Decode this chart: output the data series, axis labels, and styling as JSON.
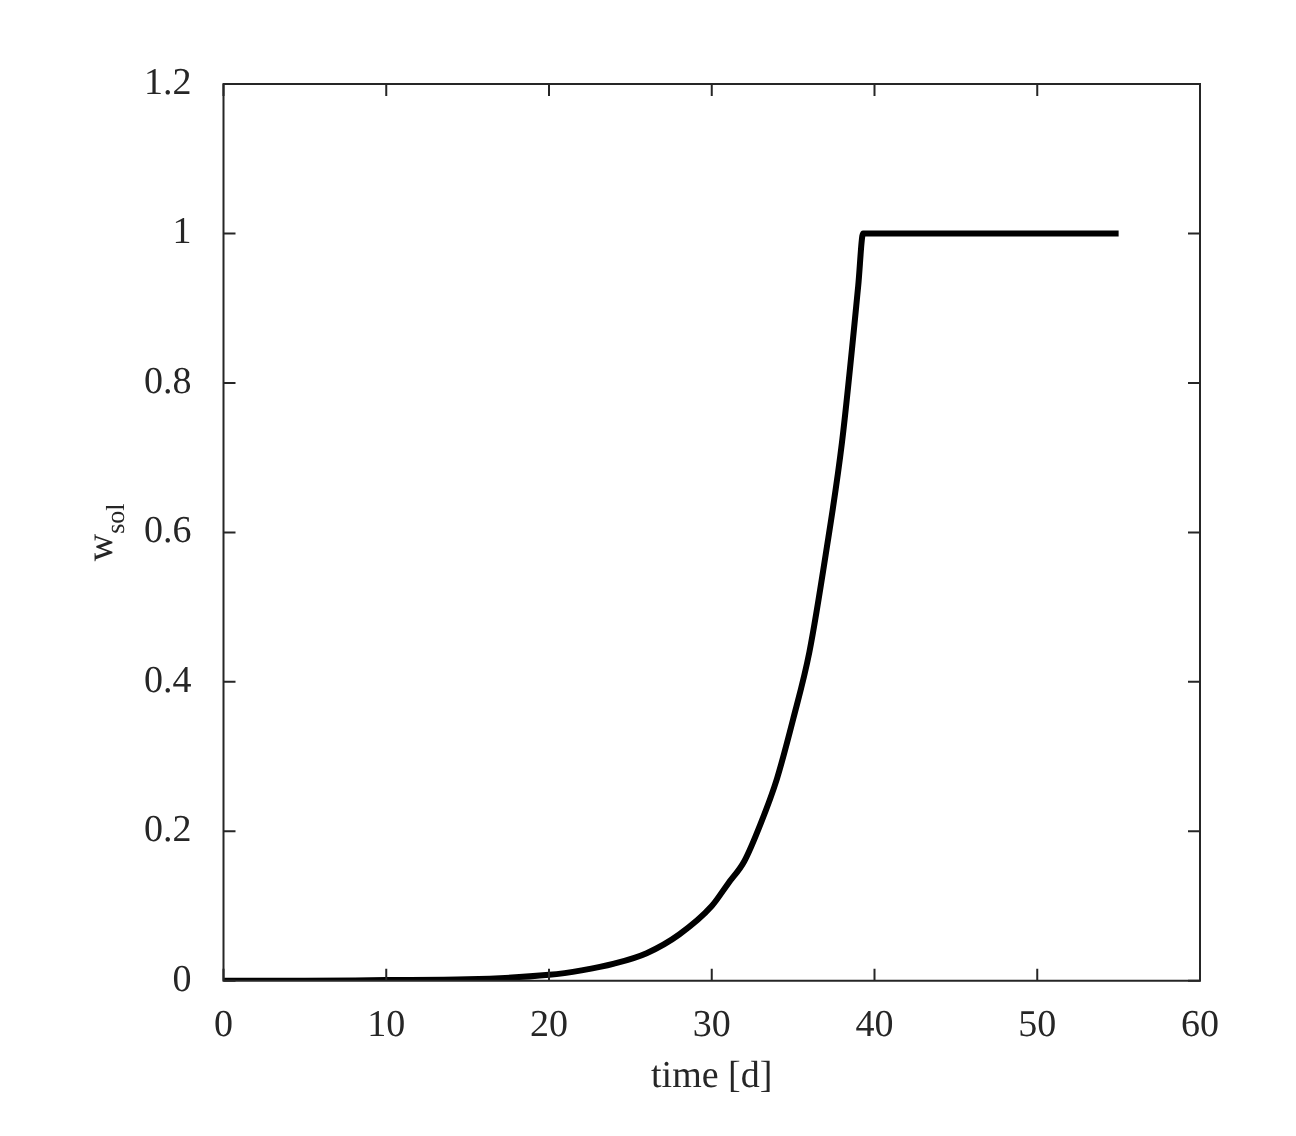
{
  "chart_data": {
    "type": "line",
    "xlabel": "time [d]",
    "ylabel": "w$_{sol}$",
    "x": [
      0,
      5,
      10,
      15,
      20,
      22,
      24,
      26,
      28,
      30,
      31,
      32,
      33,
      34,
      35,
      36,
      37,
      38,
      39,
      39.3,
      55
    ],
    "series": [
      {
        "color": "#000000",
        "values": [
          0,
          0,
          0.001,
          0.002,
          0.008,
          0.014,
          0.023,
          0.037,
          0.062,
          0.1,
          0.13,
          0.16,
          0.21,
          0.27,
          0.35,
          0.44,
          0.57,
          0.72,
          0.93,
          1,
          1
        ]
      }
    ],
    "xlim": [
      0,
      60
    ],
    "xticks": [
      0,
      10,
      20,
      30,
      40,
      50,
      60
    ],
    "ylim": [
      0,
      1.2
    ],
    "yticks": [
      0,
      0.2,
      0.4,
      0.6,
      0.8,
      1,
      1.2
    ],
    "grid": false,
    "legend": false,
    "marker": "none",
    "line_style": "solid"
  }
}
